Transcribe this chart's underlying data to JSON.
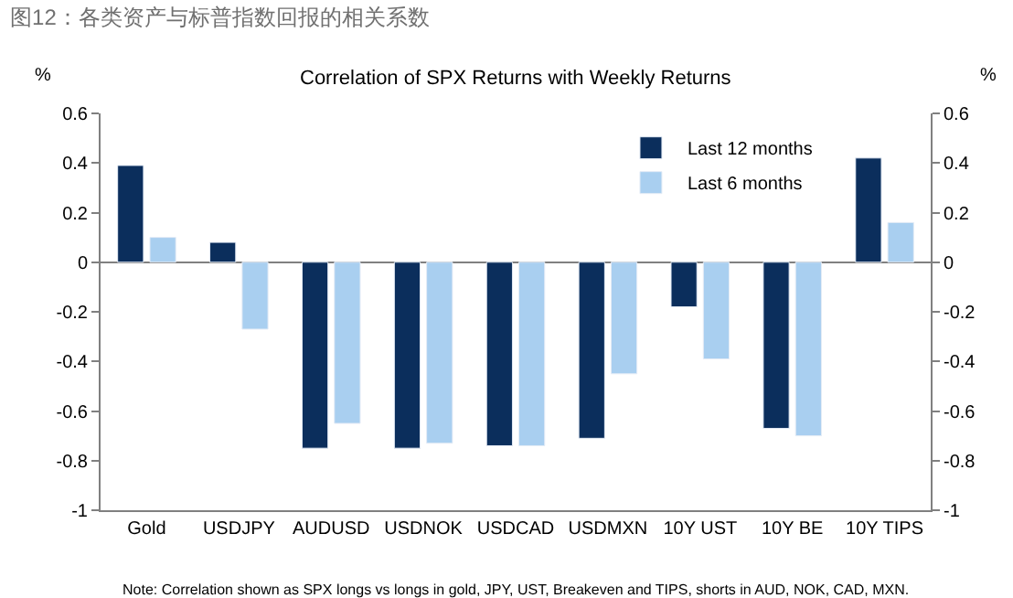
{
  "chart_data": {
    "type": "bar",
    "title": "图12：各类资产与标普指数回报的相关系数",
    "subtitle": "Correlation of SPX Returns with Weekly Returns",
    "ylabel": "%",
    "y2label": "%",
    "categories": [
      "Gold",
      "USDJPY",
      "AUDUSD",
      "USDNOK",
      "USDCAD",
      "USDMXN",
      "10Y UST",
      "10Y BE",
      "10Y TIPS"
    ],
    "series": [
      {
        "name": "Last 12 months",
        "color": "#0b2e5c",
        "values": [
          0.39,
          0.08,
          -0.75,
          -0.75,
          -0.74,
          -0.71,
          -0.18,
          -0.67,
          0.42
        ]
      },
      {
        "name": "Last 6 months",
        "color": "#a9cff0",
        "values": [
          0.1,
          -0.27,
          -0.65,
          -0.73,
          -0.74,
          -0.45,
          -0.39,
          -0.7,
          0.16
        ]
      }
    ],
    "ylim": [
      -1,
      0.6
    ],
    "yticks": [
      0.6,
      0.4,
      0.2,
      0,
      -0.2,
      -0.4,
      -0.6,
      -0.8,
      -1
    ],
    "y2lim": [
      -1,
      0.6
    ],
    "y2ticks": [
      0.6,
      0.4,
      0.2,
      0,
      -0.2,
      -0.4,
      -0.6,
      -0.8,
      -1
    ],
    "annotations": [
      "Note: Correlation shown as SPX longs vs longs in gold, JPY, UST, Breakeven and TIPS, shorts in AUD, NOK, CAD, MXN."
    ],
    "legend": "top right"
  }
}
